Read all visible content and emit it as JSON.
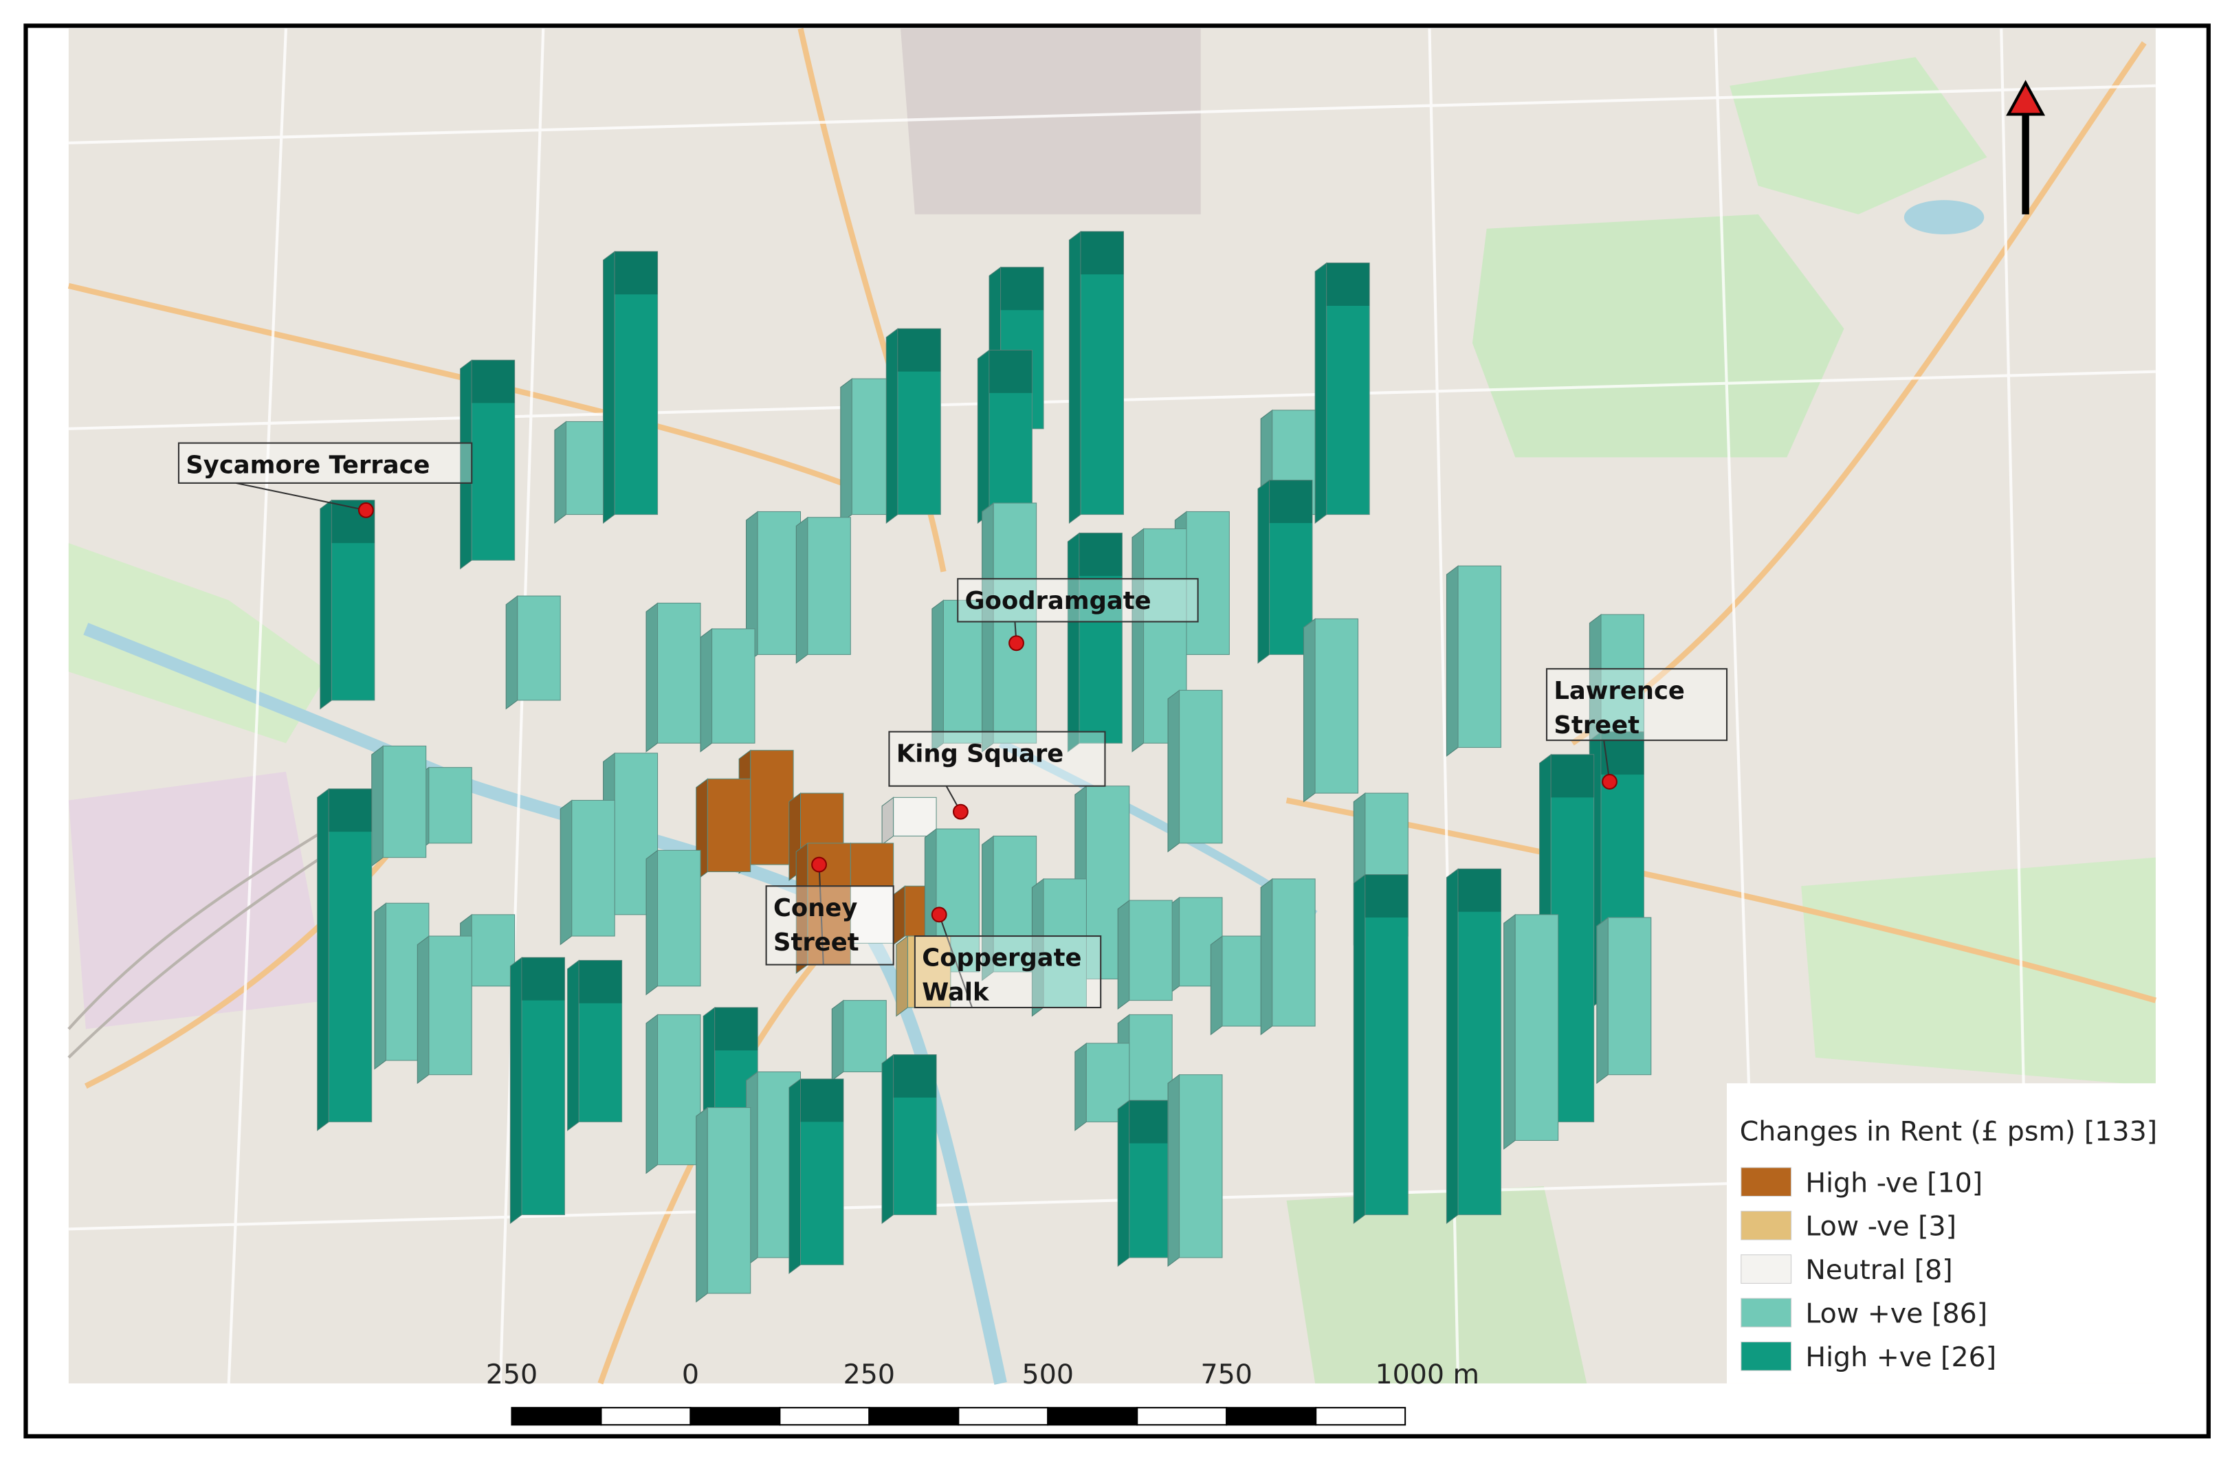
{
  "map": {
    "legend": {
      "title": "Changes in Rent (£ psm) [133]",
      "items": [
        {
          "label": "High -ve [10]",
          "color": "#b5651d"
        },
        {
          "label": "Low -ve [3]",
          "color": "#e3c07a"
        },
        {
          "label": "Neutral [8]",
          "color": "#f4f3f0"
        },
        {
          "label": "Low +ve [86]",
          "color": "#72c9b7"
        },
        {
          "label": "High +ve [26]",
          "color": "#0f9a80"
        }
      ]
    },
    "places": [
      {
        "lines": [
          "Sycamore Terrace"
        ]
      },
      {
        "lines": [
          "Goodramgate"
        ]
      },
      {
        "lines": [
          "King Square"
        ]
      },
      {
        "lines": [
          "Coney",
          "Street"
        ]
      },
      {
        "lines": [
          "Coppergate",
          "Walk"
        ]
      },
      {
        "lines": [
          "Lawrence",
          "Street"
        ]
      }
    ],
    "scale_bar": {
      "labels": [
        "250",
        "0",
        "250",
        "500",
        "750",
        "1000 m"
      ]
    }
  }
}
